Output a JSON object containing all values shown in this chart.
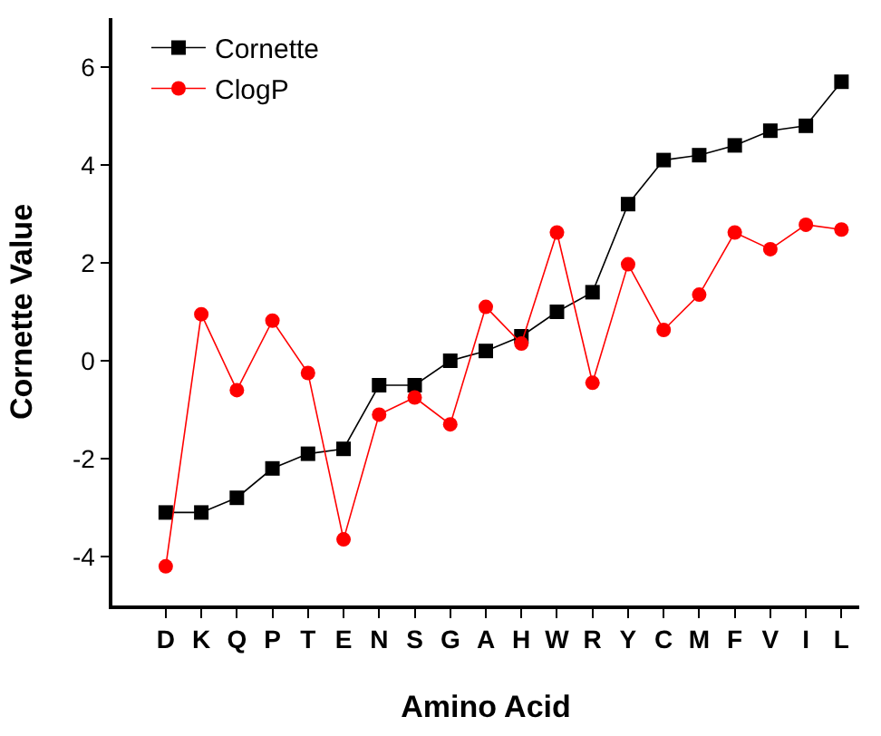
{
  "chart_data": {
    "type": "line",
    "xlabel": "Amino Acid",
    "ylabel": "Cornette Value",
    "categories": [
      "D",
      "K",
      "Q",
      "P",
      "T",
      "E",
      "N",
      "S",
      "G",
      "A",
      "H",
      "W",
      "R",
      "Y",
      "C",
      "M",
      "F",
      "V",
      "I",
      "L"
    ],
    "series": [
      {
        "name": "Cornette",
        "color": "#000000",
        "marker": "square",
        "values": [
          -3.1,
          -3.1,
          -2.8,
          -2.2,
          -1.9,
          -1.8,
          -0.5,
          -0.5,
          0,
          0.2,
          0.5,
          1.0,
          1.4,
          3.2,
          4.1,
          4.2,
          4.4,
          4.7,
          4.8,
          5.7
        ]
      },
      {
        "name": "ClogP",
        "color": "#ff0000",
        "marker": "circle",
        "values": [
          -4.2,
          0.95,
          -0.6,
          0.82,
          -0.25,
          -3.65,
          -1.1,
          -0.75,
          -1.3,
          1.1,
          0.35,
          2.62,
          -0.45,
          1.97,
          0.63,
          1.35,
          2.62,
          2.28,
          2.78,
          2.68
        ]
      }
    ],
    "ylim": [
      -5,
      7
    ],
    "yticks": [
      -4,
      -2,
      0,
      2,
      4,
      6
    ],
    "grid": false,
    "legend": "top left",
    "line_style": "solid"
  }
}
